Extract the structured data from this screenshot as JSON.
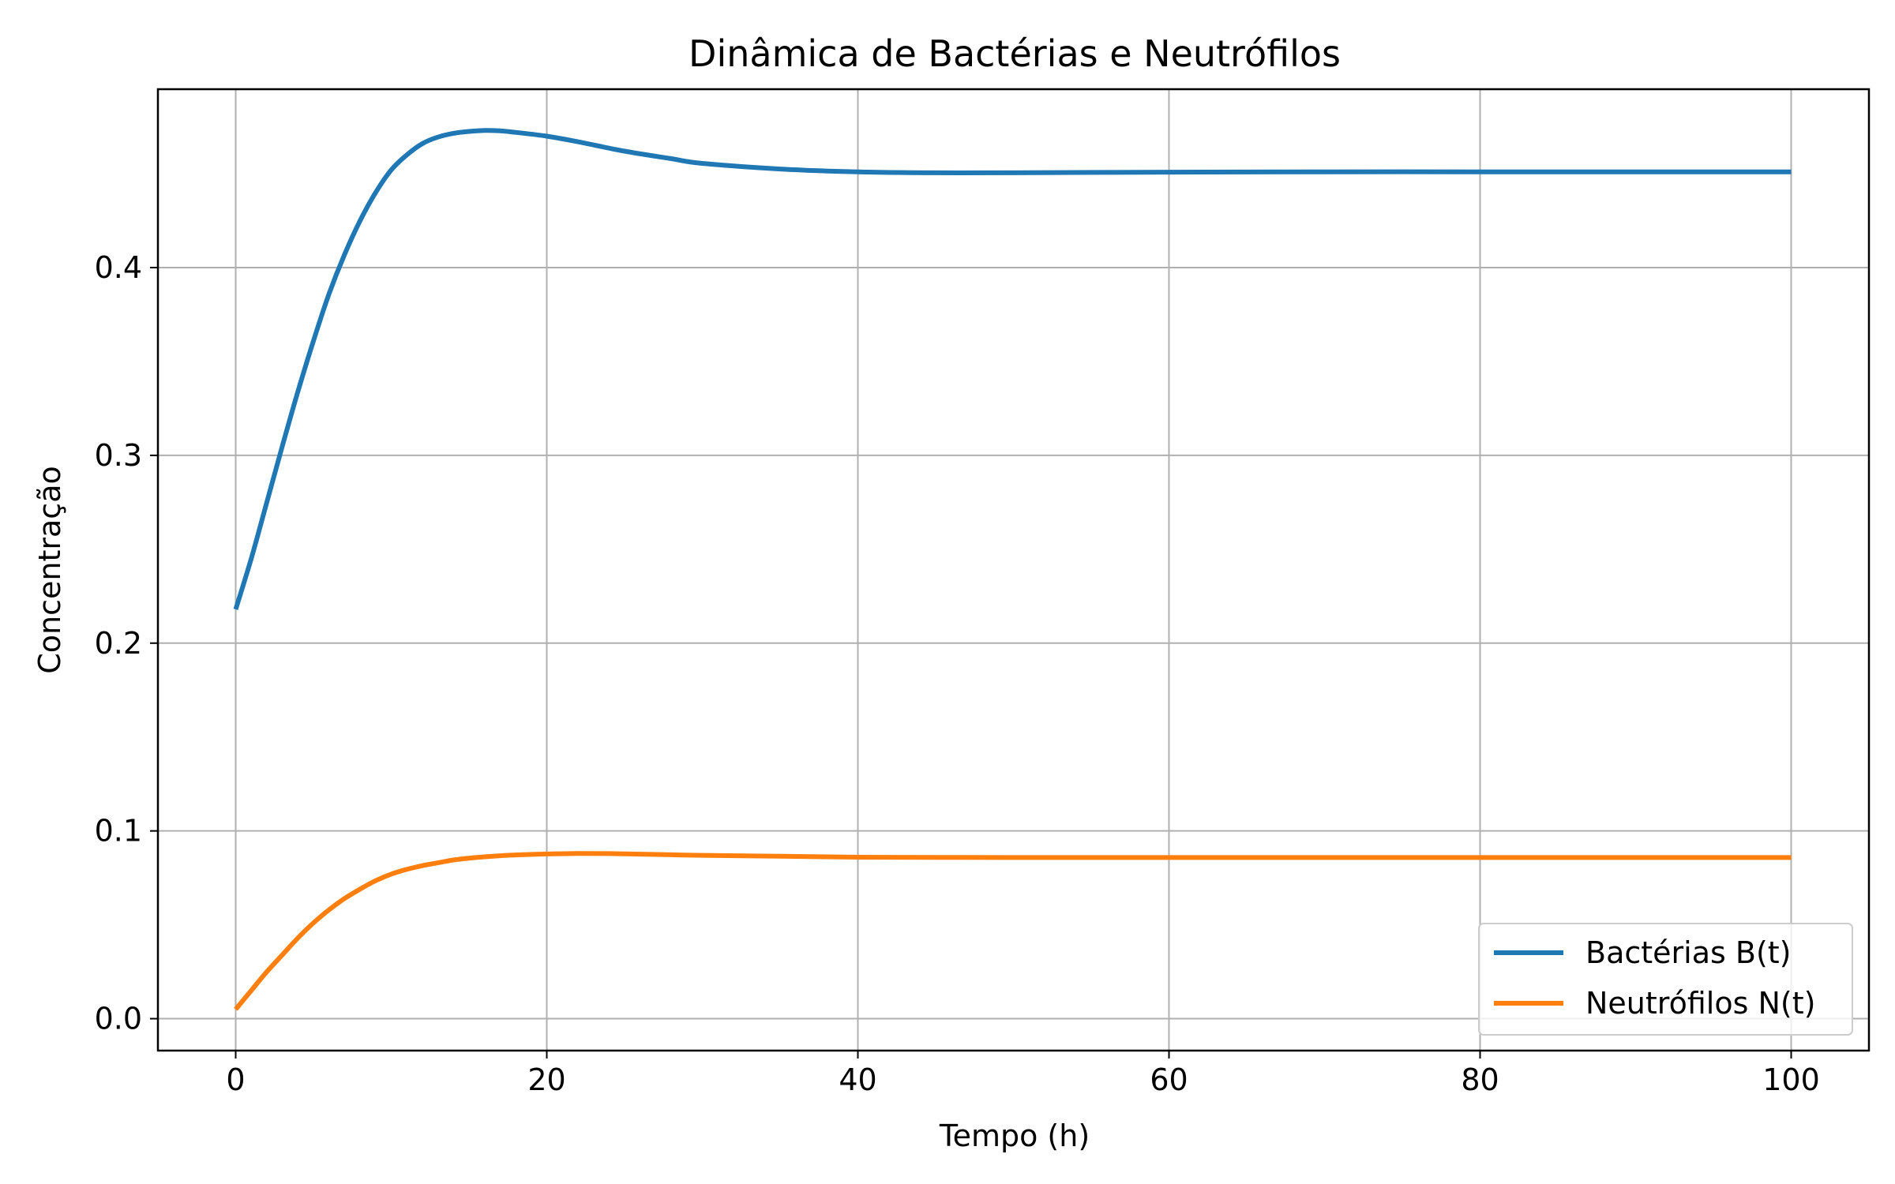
{
  "chart_data": {
    "type": "line",
    "title": "Dinâmica de Bactérias e Neutrófilos",
    "xlabel": "Tempo (h)",
    "ylabel": "Concentração",
    "xlim": [
      -5,
      105
    ],
    "ylim": [
      -0.017,
      0.495
    ],
    "xticks": [
      0,
      20,
      40,
      60,
      80,
      100
    ],
    "xtick_labels": [
      "0",
      "20",
      "40",
      "60",
      "80",
      "100"
    ],
    "yticks": [
      0.0,
      0.1,
      0.2,
      0.3,
      0.4
    ],
    "ytick_labels": [
      "0.0",
      "0.1",
      "0.2",
      "0.3",
      "0.4"
    ],
    "grid": true,
    "legend_position": "bottom-right",
    "x": [
      0,
      1,
      2,
      3,
      4,
      5,
      6,
      7,
      8,
      9,
      10,
      11,
      12,
      13,
      14,
      15,
      16,
      17,
      18,
      20,
      22,
      25,
      28,
      30,
      35,
      40,
      45,
      50,
      60,
      70,
      80,
      90,
      100
    ],
    "series": [
      {
        "name": "Bactérias B(t)",
        "color": "#1f77b4",
        "values": [
          0.218,
          0.245,
          0.275,
          0.305,
          0.334,
          0.361,
          0.386,
          0.407,
          0.425,
          0.44,
          0.452,
          0.46,
          0.466,
          0.4695,
          0.4715,
          0.4725,
          0.473,
          0.4728,
          0.472,
          0.47,
          0.467,
          0.462,
          0.458,
          0.4555,
          0.4525,
          0.451,
          0.4505,
          0.4505,
          0.4508,
          0.451,
          0.451,
          0.451,
          0.451
        ]
      },
      {
        "name": "Neutrófilos N(t)",
        "color": "#ff7f0e",
        "values": [
          0.005,
          0.015,
          0.025,
          0.034,
          0.043,
          0.051,
          0.058,
          0.064,
          0.069,
          0.0735,
          0.077,
          0.0795,
          0.0815,
          0.083,
          0.0845,
          0.0855,
          0.0862,
          0.0868,
          0.0872,
          0.0877,
          0.088,
          0.0878,
          0.0873,
          0.087,
          0.0865,
          0.086,
          0.0859,
          0.0858,
          0.0858,
          0.0858,
          0.0858,
          0.0858,
          0.0858
        ]
      }
    ]
  }
}
